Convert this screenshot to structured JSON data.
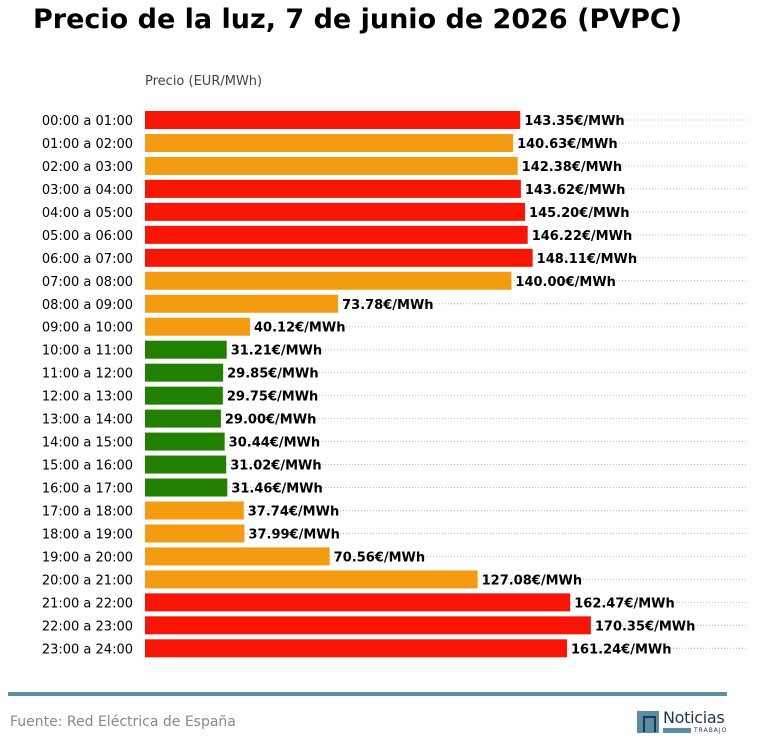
{
  "chart_data": {
    "type": "bar",
    "orientation": "horizontal",
    "title": "Precio de la luz, 7 de junio de 2026 (PVPC)",
    "xlabel": "Precio (EUR/MWh)",
    "value_suffix": "€/MWh",
    "grid": "dotted horizontal",
    "categories": [
      "00:00 a 01:00",
      "01:00 a 02:00",
      "02:00 a 03:00",
      "03:00 a 04:00",
      "04:00 a 05:00",
      "05:00 a 06:00",
      "06:00 a 07:00",
      "07:00 a 08:00",
      "08:00 a 09:00",
      "09:00 a 10:00",
      "10:00 a 11:00",
      "11:00 a 12:00",
      "12:00 a 13:00",
      "13:00 a 14:00",
      "14:00 a 15:00",
      "15:00 a 16:00",
      "16:00 a 17:00",
      "17:00 a 18:00",
      "18:00 a 19:00",
      "19:00 a 20:00",
      "20:00 a 21:00",
      "21:00 a 22:00",
      "22:00 a 23:00",
      "23:00 a 24:00"
    ],
    "values": [
      143.35,
      140.63,
      142.38,
      143.62,
      145.2,
      146.22,
      148.11,
      140.0,
      73.78,
      40.12,
      31.21,
      29.85,
      29.75,
      29.0,
      30.44,
      31.02,
      31.46,
      37.74,
      37.99,
      70.56,
      127.08,
      162.47,
      170.35,
      161.24
    ],
    "levels": [
      "high",
      "medium",
      "medium",
      "high",
      "high",
      "high",
      "high",
      "medium",
      "medium",
      "medium",
      "low",
      "low",
      "low",
      "low",
      "low",
      "low",
      "low",
      "medium",
      "medium",
      "medium",
      "medium",
      "high",
      "high",
      "high"
    ],
    "colors": {
      "high": "#f91506",
      "medium": "#f39c12",
      "low": "#218000"
    },
    "xlim": [
      0,
      230
    ]
  },
  "footer": {
    "source": "Fuente: Red Eléctrica de España",
    "logo_word": "Noticias",
    "logo_sub": "TRABAJO"
  }
}
